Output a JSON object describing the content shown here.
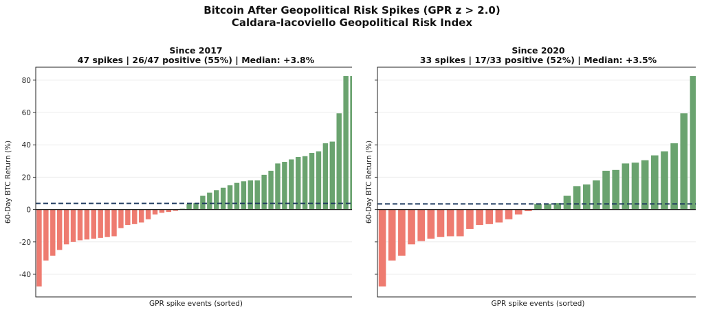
{
  "figure": {
    "title": "Bitcoin After Geopolitical Risk Spikes (GPR z > 2.0)",
    "subtitle": "Caldara-Iacoviello Geopolitical Risk Index"
  },
  "colors": {
    "positive_bar": "#6aa36f",
    "negative_bar": "#ee7b70",
    "median_line": "#1f3a5f",
    "zero_line": "#222222"
  },
  "chart_data": [
    {
      "type": "bar",
      "title": "Since 2017",
      "subtitle": "47 spikes | 26/47 positive (55%) | Median: +3.8%",
      "xlabel": "GPR spike events (sorted)",
      "ylabel": "60-Day BTC Return (%)",
      "ylim": [
        -54,
        88
      ],
      "yticks": [
        -40,
        -20,
        0,
        20,
        40,
        60,
        80
      ],
      "median": 3.8,
      "values": [
        -47.5,
        -31.5,
        -28.5,
        -25,
        -21.5,
        -20,
        -19,
        -18.5,
        -18,
        -17.5,
        -17,
        -16.5,
        -11.5,
        -9.5,
        -9,
        -8,
        -6,
        -3,
        -2,
        -1.5,
        -0.8,
        0.5,
        3.5,
        4,
        8.5,
        10.5,
        12,
        13.5,
        15,
        16.5,
        17.5,
        18,
        18,
        21.5,
        24,
        28.5,
        29.5,
        31,
        32.5,
        33,
        35,
        36,
        41,
        42,
        59.5,
        82.5,
        82.5
      ]
    },
    {
      "type": "bar",
      "title": "Since 2020",
      "subtitle": "33 spikes | 17/33 positive (52%) | Median: +3.5%",
      "xlabel": "GPR spike events (sorted)",
      "ylabel": "60-Day BTC Return (%)",
      "ylim": [
        -54,
        88
      ],
      "yticks": [
        -40,
        -20,
        0,
        20,
        40,
        60,
        80
      ],
      "median": 3.5,
      "values": [
        -47.5,
        -31.5,
        -28.5,
        -21.5,
        -19.5,
        -18,
        -17,
        -16.5,
        -16.5,
        -12,
        -9.5,
        -9,
        -8,
        -6,
        -3,
        -1,
        3.5,
        3.5,
        4,
        8.5,
        14.5,
        15.5,
        18,
        24,
        24.5,
        28.5,
        29,
        30.5,
        33.5,
        36,
        41,
        59.5,
        82.5
      ]
    }
  ]
}
